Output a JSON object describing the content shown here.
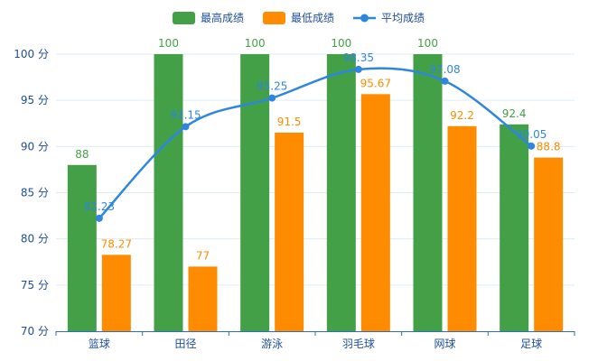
{
  "chart_data": {
    "type": "bar",
    "categories": [
      "篮球",
      "田径",
      "游泳",
      "羽毛球",
      "网球",
      "足球"
    ],
    "series": [
      {
        "name": "最高成绩",
        "type": "bar",
        "color": "#43a047",
        "values": [
          88,
          100,
          100,
          100,
          100,
          92.4
        ]
      },
      {
        "name": "最低成绩",
        "type": "bar",
        "color": "#ff8c00",
        "values": [
          78.27,
          77,
          91.5,
          95.67,
          92.2,
          88.8
        ]
      },
      {
        "name": "平均成绩",
        "type": "line",
        "smooth": true,
        "color": "#2e86de",
        "values": [
          82.23,
          92.15,
          95.25,
          98.35,
          97.08,
          90.05
        ]
      }
    ],
    "ylim": [
      70,
      100
    ],
    "yticks": [
      70,
      75,
      80,
      85,
      90,
      95,
      100
    ],
    "ytick_suffix": " 分",
    "grid": true,
    "legend_position": "top-center",
    "colors": {
      "axis": "#2e6dbf",
      "grid": "#dcecf7",
      "label_text": "#1f4e99"
    }
  }
}
